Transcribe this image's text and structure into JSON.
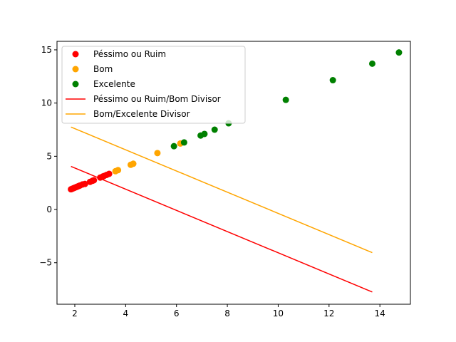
{
  "chart_data": {
    "type": "scatter",
    "title": "",
    "xlabel": "",
    "ylabel": "",
    "xlim": [
      1.3,
      15.2
    ],
    "ylim": [
      -8.9,
      15.8
    ],
    "xticks": [
      2,
      4,
      6,
      8,
      10,
      12,
      14
    ],
    "yticks": [
      -5,
      0,
      5,
      10,
      15
    ],
    "grid": false,
    "legend_position": "top-left",
    "series": [
      {
        "name": "Péssimo ou Ruim",
        "kind": "scatter",
        "color": "#ff0000",
        "points": [
          [
            1.85,
            1.9
          ],
          [
            1.9,
            1.95
          ],
          [
            1.95,
            2.0
          ],
          [
            2.0,
            2.05
          ],
          [
            2.05,
            2.1
          ],
          [
            2.1,
            2.15
          ],
          [
            2.15,
            2.2
          ],
          [
            2.2,
            2.25
          ],
          [
            2.3,
            2.35
          ],
          [
            2.4,
            2.4
          ],
          [
            2.6,
            2.6
          ],
          [
            2.7,
            2.7
          ],
          [
            2.75,
            2.75
          ],
          [
            3.0,
            3.0
          ],
          [
            3.1,
            3.1
          ],
          [
            3.15,
            3.15
          ],
          [
            3.25,
            3.25
          ],
          [
            3.35,
            3.35
          ]
        ]
      },
      {
        "name": "Bom",
        "kind": "scatter",
        "color": "#ffa500",
        "points": [
          [
            3.6,
            3.6
          ],
          [
            3.7,
            3.7
          ],
          [
            4.2,
            4.2
          ],
          [
            4.3,
            4.3
          ],
          [
            5.25,
            5.3
          ],
          [
            6.15,
            6.2
          ]
        ]
      },
      {
        "name": "Excelente",
        "kind": "scatter",
        "color": "#008000",
        "points": [
          [
            5.9,
            5.95
          ],
          [
            6.3,
            6.3
          ],
          [
            6.95,
            6.95
          ],
          [
            7.1,
            7.1
          ],
          [
            7.5,
            7.5
          ],
          [
            8.05,
            8.1
          ],
          [
            10.3,
            10.3
          ],
          [
            12.15,
            12.15
          ],
          [
            13.7,
            13.7
          ],
          [
            14.75,
            14.75
          ]
        ]
      },
      {
        "name": "Péssimo ou Ruim/Bom Divisor",
        "kind": "line",
        "color": "#ff0000",
        "points": [
          [
            1.85,
            4.05
          ],
          [
            13.7,
            -7.75
          ]
        ]
      },
      {
        "name": "Bom/Excelente Divisor",
        "kind": "line",
        "color": "#ffa500",
        "points": [
          [
            1.85,
            7.75
          ],
          [
            13.7,
            -4.05
          ]
        ]
      }
    ]
  }
}
